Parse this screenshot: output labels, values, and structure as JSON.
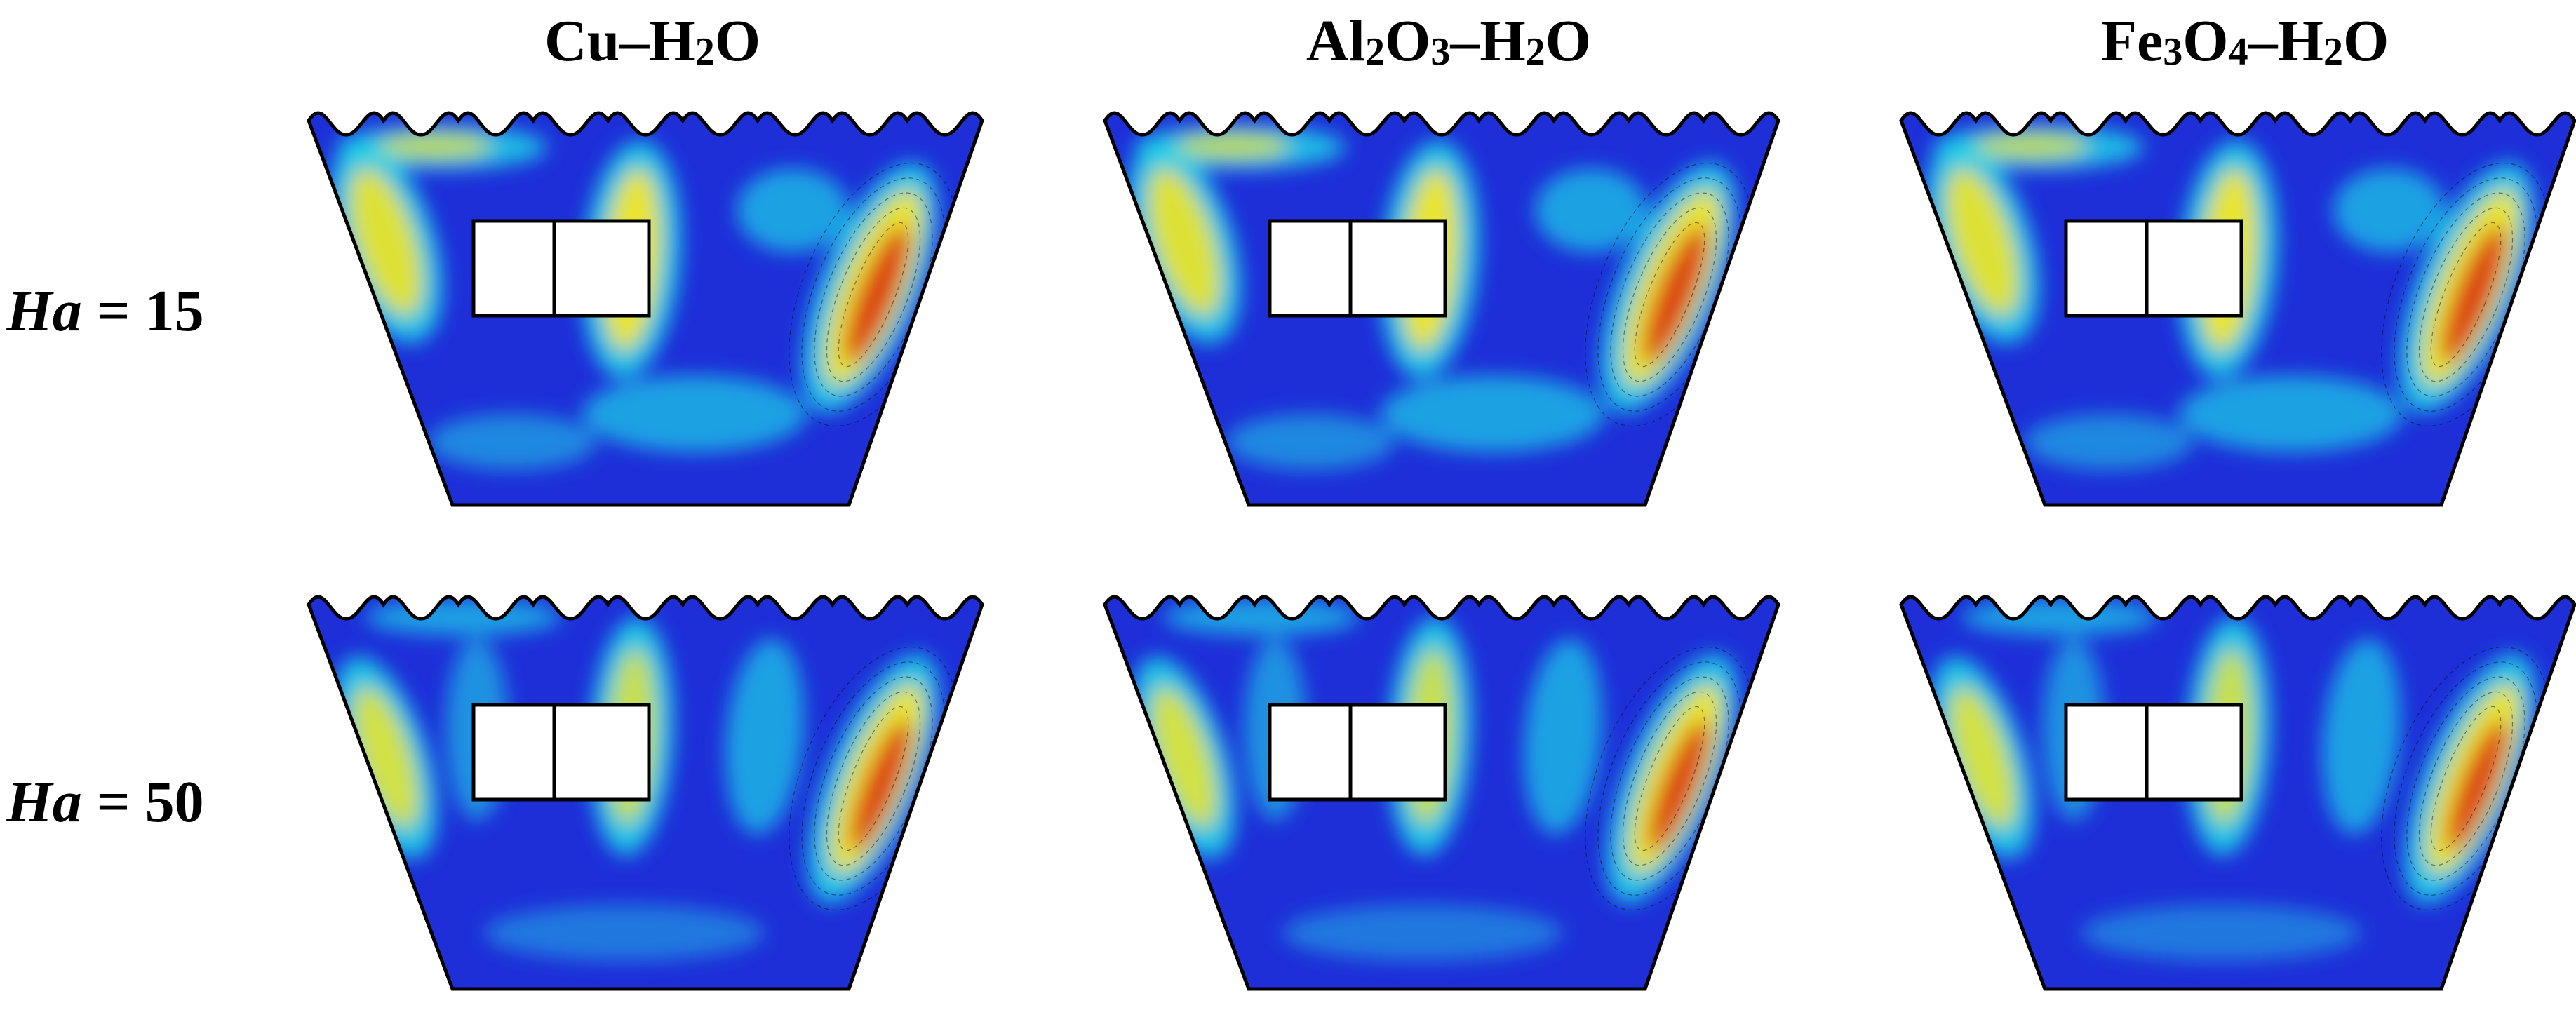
{
  "columns": [
    {
      "prefix": "Cu–H",
      "sub": "2",
      "suffix": "O"
    },
    {
      "prefix": "Al",
      "sub": "2",
      "mid": "O",
      "sub2": "3",
      "suffix": "–H",
      "sub3": "2",
      "suffix2": "O"
    },
    {
      "prefix": "Fe",
      "sub": "3",
      "mid": "O",
      "sub2": "4",
      "suffix": "–H",
      "sub3": "2",
      "suffix2": "O"
    }
  ],
  "rows": [
    {
      "symbol": "Ha",
      "value": "= 15"
    },
    {
      "symbol": "Ha",
      "value": "= 50"
    }
  ],
  "colors": {
    "contour_low": "#1e2fd8",
    "contour_mid": "#1fd3e8",
    "contour_high": "#ffe81a",
    "contour_peak": "#d8230f",
    "outline": "#000000",
    "obstacle_fill": "#ffffff"
  }
}
